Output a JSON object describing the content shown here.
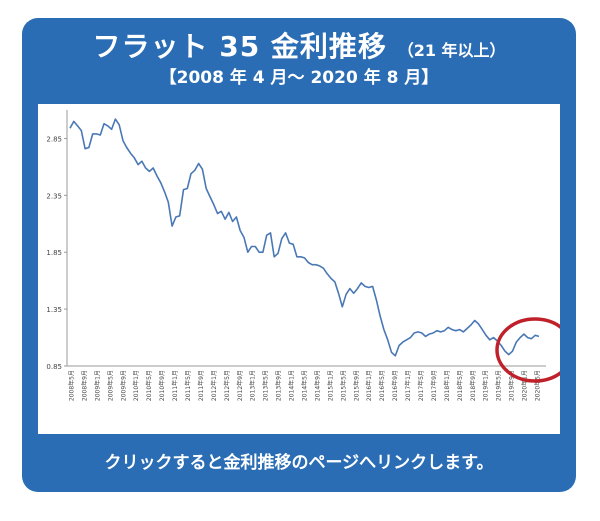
{
  "header": {
    "title": "フラット 35 金利推移",
    "title_note": "（21 年以上）",
    "period": "【2008 年 4 月～ 2020 年 8 月】"
  },
  "link_text": "クリックすると金利推移のページへリンクします。",
  "colors": {
    "frame": "#2a6db5",
    "line": "#4a78b5",
    "highlight_circle": "#c0202a"
  },
  "chart_data": {
    "type": "line",
    "title": "",
    "xlabel": "",
    "ylabel": "",
    "ylim": [
      0.85,
      3.1
    ],
    "yticks": [
      "0.85",
      "1.35",
      "1.85",
      "2.35",
      "2.85"
    ],
    "grid": false,
    "legend": "none",
    "x_tick_labels": [
      "2008年5月",
      "2008年9月",
      "2009年1月",
      "2009年5月",
      "2009年9月",
      "2010年1月",
      "2010年5月",
      "2010年9月",
      "2011年1月",
      "2011年5月",
      "2011年9月",
      "2012年1月",
      "2012年5月",
      "2012年9月",
      "2013年1月",
      "2013年5月",
      "2013年9月",
      "2014年1月",
      "2014年5月",
      "2014年9月",
      "2015年1月",
      "2015年5月",
      "2015年9月",
      "2016年1月",
      "2016年5月",
      "2016年9月",
      "2017年1月",
      "2017年5月",
      "2017年9月",
      "2018年1月",
      "2018年5月",
      "2018年9月",
      "2019年1月",
      "2019年5月",
      "2019年9月",
      "2020年1月",
      "2020年5月"
    ],
    "series": [
      {
        "name": "",
        "values": [
          2.94,
          3.0,
          2.96,
          2.92,
          2.76,
          2.77,
          2.89,
          2.89,
          2.88,
          2.98,
          2.96,
          2.93,
          3.02,
          2.97,
          2.83,
          2.77,
          2.72,
          2.68,
          2.62,
          2.65,
          2.59,
          2.56,
          2.59,
          2.52,
          2.46,
          2.38,
          2.29,
          2.08,
          2.16,
          2.17,
          2.4,
          2.41,
          2.54,
          2.57,
          2.63,
          2.58,
          2.41,
          2.34,
          2.27,
          2.19,
          2.21,
          2.14,
          2.2,
          2.12,
          2.16,
          2.04,
          1.98,
          1.85,
          1.9,
          1.9,
          1.85,
          1.85,
          2.0,
          2.02,
          1.81,
          1.84,
          1.97,
          2.02,
          1.93,
          1.92,
          1.81,
          1.81,
          1.8,
          1.76,
          1.74,
          1.74,
          1.73,
          1.71,
          1.66,
          1.62,
          1.59,
          1.49,
          1.37,
          1.48,
          1.53,
          1.49,
          1.53,
          1.58,
          1.55,
          1.54,
          1.55,
          1.43,
          1.29,
          1.17,
          1.08,
          0.97,
          0.94,
          1.03,
          1.06,
          1.08,
          1.1,
          1.14,
          1.15,
          1.14,
          1.11,
          1.13,
          1.14,
          1.16,
          1.15,
          1.16,
          1.19,
          1.17,
          1.16,
          1.17,
          1.15,
          1.18,
          1.21,
          1.25,
          1.22,
          1.17,
          1.12,
          1.08,
          1.1,
          1.07,
          1.03,
          0.98,
          0.95,
          0.98,
          1.06,
          1.1,
          1.13,
          1.1,
          1.09,
          1.12,
          1.11
        ]
      }
    ]
  }
}
